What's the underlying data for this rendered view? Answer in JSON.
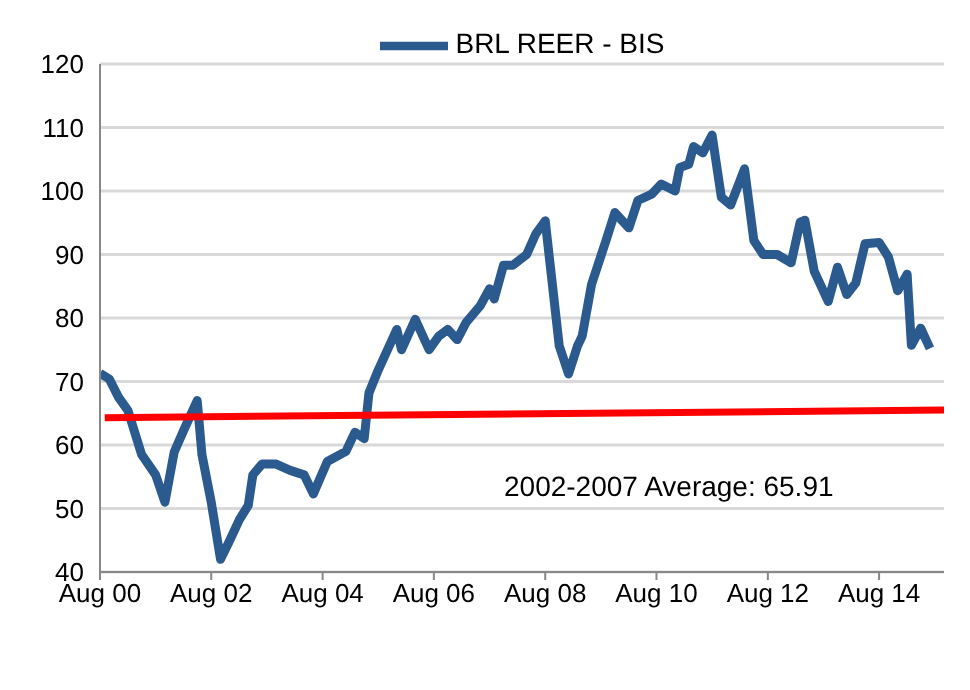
{
  "chart_data": {
    "type": "line",
    "series": [
      {
        "name": "BRL REER - BIS",
        "color": "#2b5a8f",
        "x": [
          "2000-08",
          "2000-10",
          "2000-12",
          "2001-02",
          "2001-05",
          "2001-08",
          "2001-10",
          "2001-12",
          "2002-02",
          "2002-05",
          "2002-06",
          "2002-08",
          "2002-10",
          "2002-12",
          "2003-02",
          "2003-04",
          "2003-05",
          "2003-07",
          "2003-10",
          "2004-01",
          "2004-04",
          "2004-06",
          "2004-09",
          "2005-01",
          "2005-03",
          "2005-05",
          "2005-06",
          "2005-08",
          "2005-12",
          "2006-01",
          "2006-04",
          "2006-07",
          "2006-09",
          "2006-11",
          "2007-01",
          "2007-03",
          "2007-06",
          "2007-08",
          "2007-09",
          "2007-11",
          "2008-01",
          "2008-04",
          "2008-06",
          "2008-08",
          "2008-11",
          "2009-01",
          "2009-03",
          "2009-04",
          "2009-06",
          "2009-09",
          "2009-11",
          "2010-02",
          "2010-04",
          "2010-07",
          "2010-09",
          "2010-12",
          "2011-01",
          "2011-03",
          "2011-04",
          "2011-06",
          "2011-08",
          "2011-10",
          "2011-12",
          "2012-03",
          "2012-05",
          "2012-07",
          "2012-10",
          "2013-01",
          "2013-03",
          "2013-04",
          "2013-06",
          "2013-09",
          "2013-11",
          "2014-01",
          "2014-03",
          "2014-05",
          "2014-08",
          "2014-10",
          "2014-12",
          "2015-02",
          "2015-03",
          "2015-05",
          "2015-07"
        ],
        "values": [
          71.3,
          70.4,
          67.5,
          65.4,
          58.5,
          55.3,
          51,
          58.9,
          62.3,
          67,
          58.5,
          51,
          42,
          45,
          48.2,
          50.5,
          55.3,
          57,
          57,
          56,
          55.3,
          52.3,
          57.4,
          59,
          62,
          61,
          68.2,
          71.8,
          78.2,
          75,
          79.8,
          75,
          77.1,
          78.2,
          76.6,
          79.3,
          81.9,
          84.6,
          83,
          88.3,
          88.3,
          90,
          93.3,
          95.3,
          75.6,
          71.2,
          75.6,
          77.2,
          85.3,
          92,
          96.6,
          94.2,
          98.5,
          99.5,
          101.1,
          100,
          103.7,
          104.2,
          107,
          106,
          108.8,
          99,
          97.8,
          103.5,
          92.2,
          90,
          90,
          88.7,
          95.1,
          95.4,
          87.4,
          82.6,
          88,
          83.7,
          85.5,
          91.7,
          91.9,
          89.6,
          84.3,
          86.9,
          75.7,
          78.4,
          75.2
        ]
      },
      {
        "color": "#ff0000",
        "x": [
          "2000-09",
          "2015-10"
        ],
        "values": [
          64.3,
          65.5
        ]
      }
    ],
    "xlim": [
      "2000-08",
      "2015-10"
    ],
    "xticks": [
      {
        "value": "2000-08",
        "label": "Aug 00"
      },
      {
        "value": "2002-08",
        "label": "Aug 02"
      },
      {
        "value": "2004-08",
        "label": "Aug 04"
      },
      {
        "value": "2006-08",
        "label": "Aug 06"
      },
      {
        "value": "2008-08",
        "label": "Aug 08"
      },
      {
        "value": "2010-08",
        "label": "Aug 10"
      },
      {
        "value": "2012-08",
        "label": "Aug 12"
      },
      {
        "value": "2014-08",
        "label": "Aug 14"
      }
    ],
    "ylim": [
      40,
      120
    ],
    "yticks": [
      40,
      50,
      60,
      70,
      80,
      90,
      100,
      110,
      120
    ],
    "annotations": [
      "2002-2007 Average: 65.91"
    ],
    "grid": "y",
    "legend": "top",
    "marker": "none",
    "line_style": "solid"
  }
}
